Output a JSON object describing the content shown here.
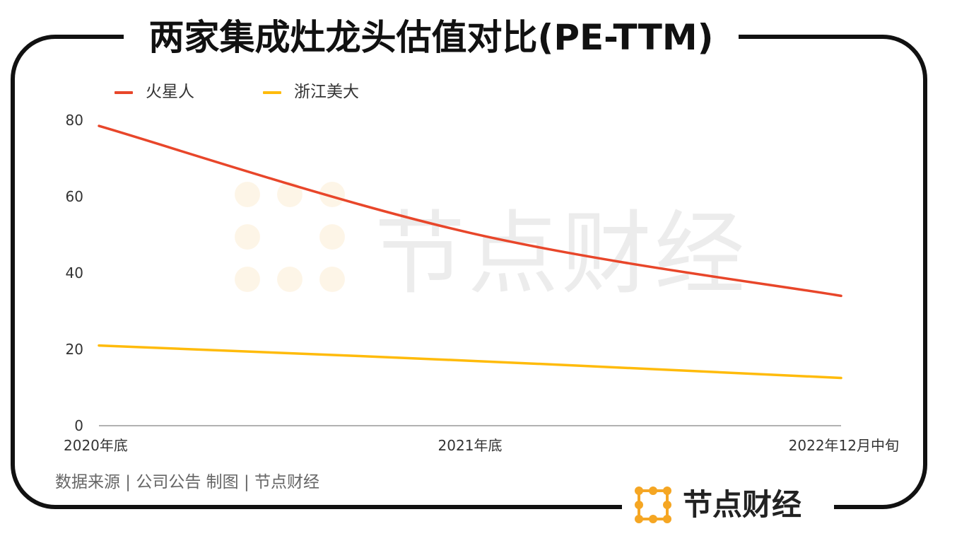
{
  "title": "两家集成灶龙头估值对比(PE-TTM)",
  "legend": {
    "items": [
      {
        "label": "火星人",
        "color": "#e8462a"
      },
      {
        "label": "浙江美大",
        "color": "#ffbb0b"
      }
    ]
  },
  "chart_data": {
    "type": "line",
    "title": "两家集成灶龙头估值对比(PE-TTM)",
    "categories": [
      "2020年底",
      "2021年底",
      "2022年12月中旬"
    ],
    "series": [
      {
        "name": "火星人",
        "color": "#e8462a",
        "values": [
          78.5,
          50.5,
          34
        ]
      },
      {
        "name": "浙江美大",
        "color": "#ffbb0b",
        "values": [
          21,
          17,
          12.5
        ]
      }
    ],
    "y_ticks": [
      "0",
      "20",
      "40",
      "60",
      "80"
    ],
    "ylim": [
      0,
      80
    ],
    "xlabel": "",
    "ylabel": "",
    "grid": false,
    "legend_position": "top-left"
  },
  "footer": {
    "source": "数据来源 | 公司公告   制图 | 节点财经"
  },
  "brand": {
    "name": "节点财经",
    "color": "#f5a623",
    "icon": "node-logo-icon"
  },
  "watermark": {
    "text": "节点财经"
  },
  "colors": {
    "frame": "#111111",
    "axis": "#999999"
  }
}
